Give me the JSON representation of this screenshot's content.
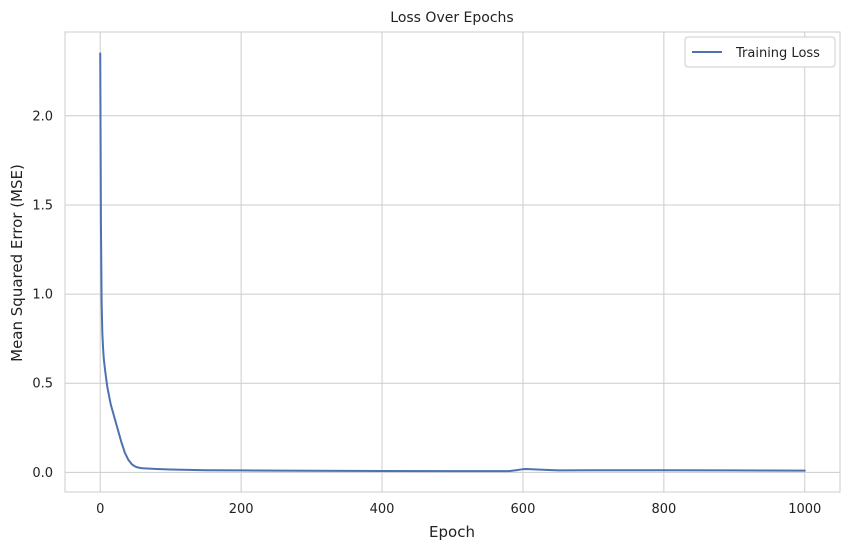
{
  "chart_data": {
    "type": "line",
    "title": "Loss Over Epochs",
    "xlabel": "Epoch",
    "ylabel": "Mean Squared Error (MSE)",
    "xlim": [
      -50,
      1050
    ],
    "ylim": [
      -0.11,
      2.47
    ],
    "xticks": [
      0,
      200,
      400,
      600,
      800,
      1000
    ],
    "yticks": [
      0.0,
      0.5,
      1.0,
      1.5,
      2.0
    ],
    "xtick_labels": [
      "0",
      "200",
      "400",
      "600",
      "800",
      "1000"
    ],
    "ytick_labels": [
      "0.0",
      "0.5",
      "1.0",
      "1.5",
      "2.0"
    ],
    "grid": true,
    "legend_position": "top-right",
    "series": [
      {
        "name": "Training Loss",
        "color": "#4c72b0",
        "x": [
          0,
          1,
          2,
          3,
          4,
          5,
          7,
          10,
          15,
          20,
          25,
          30,
          35,
          40,
          45,
          50,
          55,
          60,
          70,
          80,
          100,
          150,
          200,
          300,
          400,
          500,
          580,
          590,
          600,
          605,
          620,
          650,
          700,
          800,
          900,
          1000
        ],
        "y": [
          2.35,
          1.4,
          0.95,
          0.78,
          0.7,
          0.64,
          0.57,
          0.48,
          0.38,
          0.31,
          0.24,
          0.17,
          0.11,
          0.07,
          0.045,
          0.032,
          0.026,
          0.023,
          0.021,
          0.019,
          0.016,
          0.012,
          0.011,
          0.009,
          0.008,
          0.007,
          0.007,
          0.012,
          0.018,
          0.019,
          0.016,
          0.011,
          0.012,
          0.012,
          0.011,
          0.01
        ]
      }
    ]
  }
}
